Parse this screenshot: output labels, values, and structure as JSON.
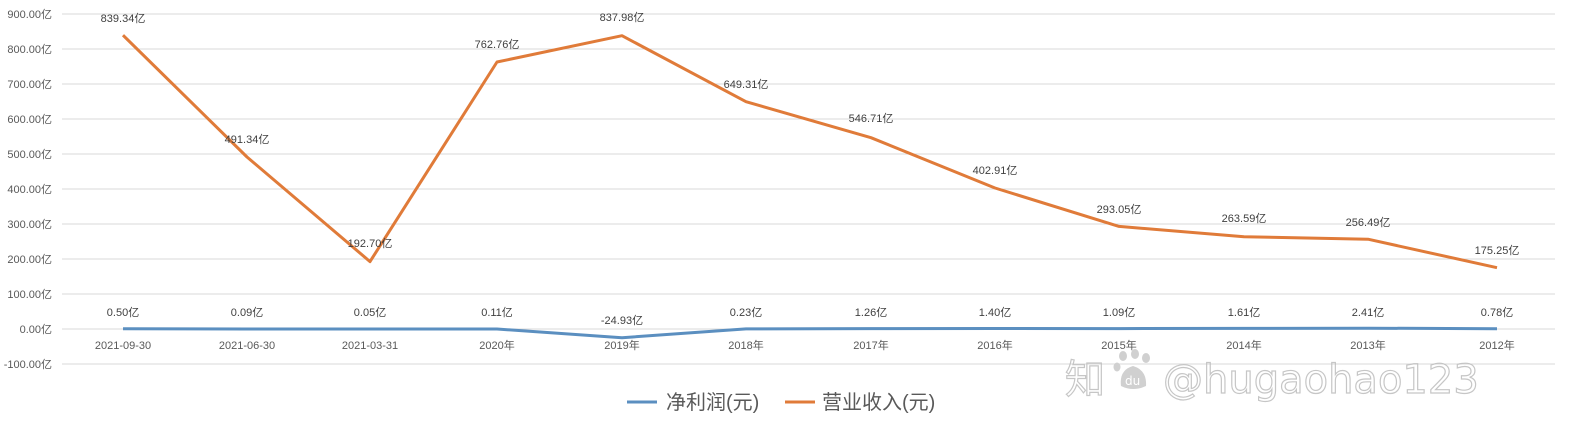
{
  "chart_data": {
    "type": "line",
    "title": "",
    "xlabel": "",
    "ylabel": "",
    "ylim": [
      -100,
      900
    ],
    "grid": true,
    "legend_position": "bottom",
    "y_ticks": [
      "900.00亿",
      "800.00亿",
      "700.00亿",
      "600.00亿",
      "500.00亿",
      "400.00亿",
      "300.00亿",
      "200.00亿",
      "100.00亿",
      "0.00亿",
      "-100.00亿"
    ],
    "y_tick_values": [
      900,
      800,
      700,
      600,
      500,
      400,
      300,
      200,
      100,
      0,
      -100
    ],
    "categories": [
      "2021-09-30",
      "2021-06-30",
      "2021-03-31",
      "2020年",
      "2019年",
      "2018年",
      "2017年",
      "2016年",
      "2015年",
      "2014年",
      "2013年",
      "2012年"
    ],
    "series": [
      {
        "name": "净利润(元)",
        "color": "#5b8fc0",
        "values": [
          0.5,
          0.09,
          0.05,
          0.11,
          -24.93,
          0.23,
          1.26,
          1.4,
          1.09,
          1.61,
          2.41,
          0.78
        ],
        "labels": [
          "0.50亿",
          "0.09亿",
          "0.05亿",
          "0.11亿",
          "-24.93亿",
          "0.23亿",
          "1.26亿",
          "1.40亿",
          "1.09亿",
          "1.61亿",
          "2.41亿",
          "0.78亿"
        ]
      },
      {
        "name": "营业收入(元)",
        "color": "#e07b39",
        "values": [
          839.34,
          491.34,
          192.7,
          762.76,
          837.98,
          649.31,
          546.71,
          402.91,
          293.05,
          263.59,
          256.49,
          175.25
        ],
        "labels": [
          "839.34亿",
          "491.34亿",
          "192.70亿",
          "762.76亿",
          "837.98亿",
          "649.31亿",
          "546.71亿",
          "402.91亿",
          "293.05亿",
          "263.59亿",
          "256.49亿",
          "175.25亿"
        ]
      }
    ]
  },
  "legend": {
    "items": [
      {
        "label": "净利润(元)",
        "color": "#5b8fc0"
      },
      {
        "label": "营业收入(元)",
        "color": "#e07b39"
      }
    ]
  },
  "watermark": {
    "text": "知乎 @hugaohao123",
    "badge": "du"
  }
}
